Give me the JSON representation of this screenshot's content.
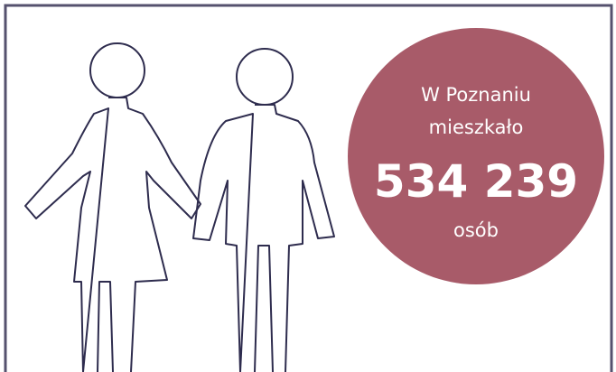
{
  "info": {
    "line1": "W Poznaniu",
    "line2": "mieszkało",
    "number": "534 239",
    "unit": "osób"
  }
}
